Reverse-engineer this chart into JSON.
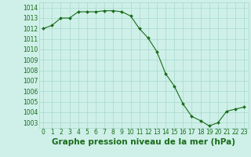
{
  "x": [
    0,
    1,
    2,
    3,
    4,
    5,
    6,
    7,
    8,
    9,
    10,
    11,
    12,
    13,
    14,
    15,
    16,
    17,
    18,
    19,
    20,
    21,
    22,
    23
  ],
  "y": [
    1012.0,
    1012.3,
    1013.0,
    1013.0,
    1013.6,
    1013.6,
    1013.6,
    1013.7,
    1013.7,
    1013.6,
    1013.2,
    1012.0,
    1011.1,
    1009.8,
    1007.7,
    1006.5,
    1004.8,
    1003.6,
    1003.2,
    1002.7,
    1003.0,
    1004.1,
    1004.3,
    1004.5
  ],
  "line_color": "#1a6b1a",
  "marker": "D",
  "marker_size": 2.0,
  "bg_color": "#cef0e8",
  "grid_color": "#a8d8ce",
  "xlabel": "Graphe pression niveau de la mer (hPa)",
  "xlabel_fontsize": 7.5,
  "xlabel_color": "#1a6b1a",
  "tick_color": "#1a6b1a",
  "tick_fontsize": 5.5,
  "ylim": [
    1002.5,
    1014.5
  ],
  "yticks": [
    1003,
    1004,
    1005,
    1006,
    1007,
    1008,
    1009,
    1010,
    1011,
    1012,
    1013,
    1014
  ],
  "xlim": [
    -0.5,
    23.5
  ],
  "xticks": [
    0,
    1,
    2,
    3,
    4,
    5,
    6,
    7,
    8,
    9,
    10,
    11,
    12,
    13,
    14,
    15,
    16,
    17,
    18,
    19,
    20,
    21,
    22,
    23
  ]
}
